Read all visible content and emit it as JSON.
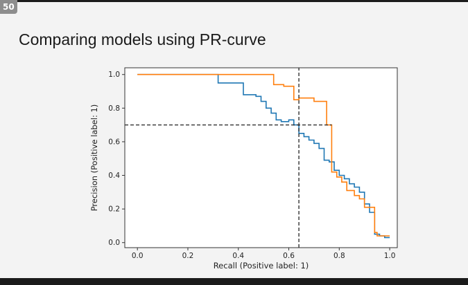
{
  "slide": {
    "badge": "50",
    "title": "Comparing models using PR-curve"
  },
  "chart_data": {
    "type": "line",
    "title": "",
    "xlabel": "Recall (Positive label: 1)",
    "ylabel": "Precision (Positive label: 1)",
    "xlim": [
      -0.05,
      1.03
    ],
    "ylim": [
      -0.03,
      1.04
    ],
    "x_ticks": [
      0.0,
      0.2,
      0.4,
      0.6,
      0.8,
      1.0
    ],
    "x_tick_labels": [
      "0.0",
      "0.2",
      "0.4",
      "0.6",
      "0.8",
      "1.0"
    ],
    "y_ticks": [
      0.0,
      0.2,
      0.4,
      0.6,
      0.8,
      1.0
    ],
    "y_tick_labels": [
      "0.0",
      "0.2",
      "0.4",
      "0.6",
      "0.8",
      "1.0"
    ],
    "grid": false,
    "legend": false,
    "series": [
      {
        "color": "#1f77b4",
        "step": true,
        "points": [
          [
            0.0,
            1.0
          ],
          [
            0.32,
            1.0
          ],
          [
            0.32,
            0.95
          ],
          [
            0.42,
            0.95
          ],
          [
            0.42,
            0.88
          ],
          [
            0.47,
            0.88
          ],
          [
            0.47,
            0.87
          ],
          [
            0.49,
            0.87
          ],
          [
            0.49,
            0.84
          ],
          [
            0.51,
            0.84
          ],
          [
            0.51,
            0.8
          ],
          [
            0.53,
            0.8
          ],
          [
            0.53,
            0.77
          ],
          [
            0.55,
            0.77
          ],
          [
            0.55,
            0.73
          ],
          [
            0.57,
            0.73
          ],
          [
            0.57,
            0.72
          ],
          [
            0.6,
            0.72
          ],
          [
            0.6,
            0.73
          ],
          [
            0.62,
            0.73
          ],
          [
            0.62,
            0.7
          ],
          [
            0.64,
            0.7
          ],
          [
            0.64,
            0.65
          ],
          [
            0.66,
            0.65
          ],
          [
            0.66,
            0.63
          ],
          [
            0.68,
            0.63
          ],
          [
            0.68,
            0.61
          ],
          [
            0.7,
            0.61
          ],
          [
            0.7,
            0.59
          ],
          [
            0.72,
            0.59
          ],
          [
            0.72,
            0.56
          ],
          [
            0.74,
            0.56
          ],
          [
            0.74,
            0.49
          ],
          [
            0.76,
            0.49
          ],
          [
            0.76,
            0.48
          ],
          [
            0.78,
            0.48
          ],
          [
            0.78,
            0.43
          ],
          [
            0.8,
            0.43
          ],
          [
            0.8,
            0.4
          ],
          [
            0.82,
            0.4
          ],
          [
            0.82,
            0.38
          ],
          [
            0.84,
            0.38
          ],
          [
            0.84,
            0.35
          ],
          [
            0.86,
            0.35
          ],
          [
            0.86,
            0.33
          ],
          [
            0.88,
            0.33
          ],
          [
            0.88,
            0.3
          ],
          [
            0.9,
            0.3
          ],
          [
            0.9,
            0.23
          ],
          [
            0.92,
            0.23
          ],
          [
            0.92,
            0.18
          ],
          [
            0.94,
            0.18
          ],
          [
            0.94,
            0.05
          ],
          [
            0.96,
            0.05
          ],
          [
            0.96,
            0.04
          ],
          [
            0.98,
            0.04
          ],
          [
            0.98,
            0.03
          ],
          [
            1.0,
            0.03
          ]
        ]
      },
      {
        "color": "#ff7f0e",
        "step": true,
        "points": [
          [
            0.0,
            1.0
          ],
          [
            0.54,
            1.0
          ],
          [
            0.54,
            0.94
          ],
          [
            0.58,
            0.94
          ],
          [
            0.58,
            0.93
          ],
          [
            0.62,
            0.93
          ],
          [
            0.62,
            0.85
          ],
          [
            0.64,
            0.85
          ],
          [
            0.64,
            0.86
          ],
          [
            0.7,
            0.86
          ],
          [
            0.7,
            0.84
          ],
          [
            0.75,
            0.84
          ],
          [
            0.75,
            0.7
          ],
          [
            0.77,
            0.7
          ],
          [
            0.77,
            0.42
          ],
          [
            0.79,
            0.42
          ],
          [
            0.79,
            0.39
          ],
          [
            0.81,
            0.39
          ],
          [
            0.81,
            0.36
          ],
          [
            0.83,
            0.36
          ],
          [
            0.83,
            0.31
          ],
          [
            0.86,
            0.31
          ],
          [
            0.86,
            0.28
          ],
          [
            0.88,
            0.28
          ],
          [
            0.88,
            0.26
          ],
          [
            0.9,
            0.26
          ],
          [
            0.9,
            0.21
          ],
          [
            0.94,
            0.21
          ],
          [
            0.94,
            0.06
          ],
          [
            0.95,
            0.06
          ],
          [
            0.95,
            0.04
          ],
          [
            1.0,
            0.04
          ]
        ]
      }
    ],
    "reference_lines": [
      {
        "orientation": "vertical",
        "x": 0.64,
        "y_range": [
          -0.03,
          1.04
        ],
        "style": "dashed",
        "color": "#222222"
      },
      {
        "orientation": "horizontal",
        "y": 0.7,
        "x_range": [
          -0.05,
          0.77
        ],
        "style": "dashed",
        "color": "#222222"
      }
    ]
  }
}
